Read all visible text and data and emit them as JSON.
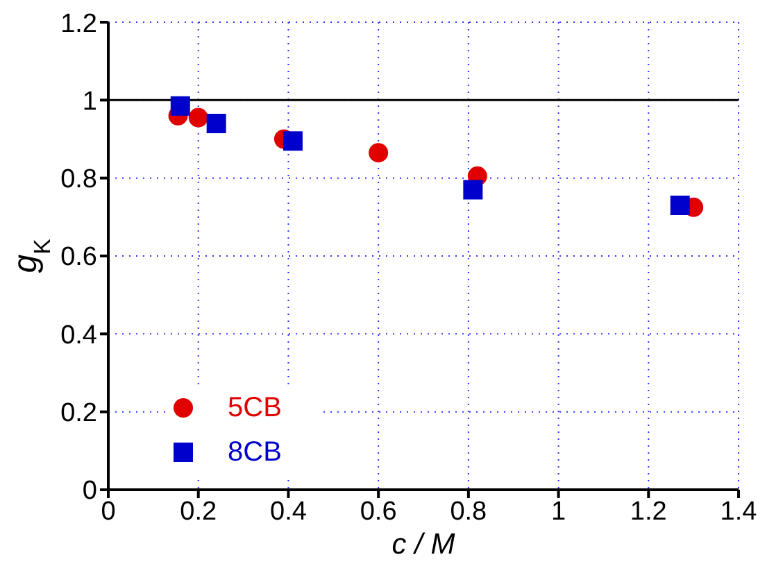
{
  "chart_data": {
    "type": "scatter",
    "xlabel": "c / M",
    "ylabel": "g$_{K}$",
    "xlim": [
      0,
      1.4
    ],
    "xticks": [
      0,
      0.2,
      0.4,
      0.6,
      0.8,
      1,
      1.2,
      1.4
    ],
    "ylim": [
      0,
      1.2
    ],
    "yticks": [
      0,
      0.2,
      0.4,
      0.6,
      0.8,
      1,
      1.2
    ],
    "grid": true,
    "legend": "bottom left",
    "ref_lines": [
      {
        "axis": "y",
        "value": 1,
        "color": "#000000"
      }
    ],
    "series": [
      {
        "name": "5CB",
        "color": "#e00000",
        "marker": "circle",
        "x": [
          0.155,
          0.2,
          0.39,
          0.6,
          0.82,
          1.3
        ],
        "values": [
          0.96,
          0.955,
          0.9,
          0.865,
          0.805,
          0.725
        ]
      },
      {
        "name": "8CB",
        "color": "#0000cc",
        "marker": "square",
        "x": [
          0.16,
          0.24,
          0.41,
          0.81,
          1.27
        ],
        "values": [
          0.985,
          0.94,
          0.895,
          0.77,
          0.73
        ]
      }
    ]
  }
}
